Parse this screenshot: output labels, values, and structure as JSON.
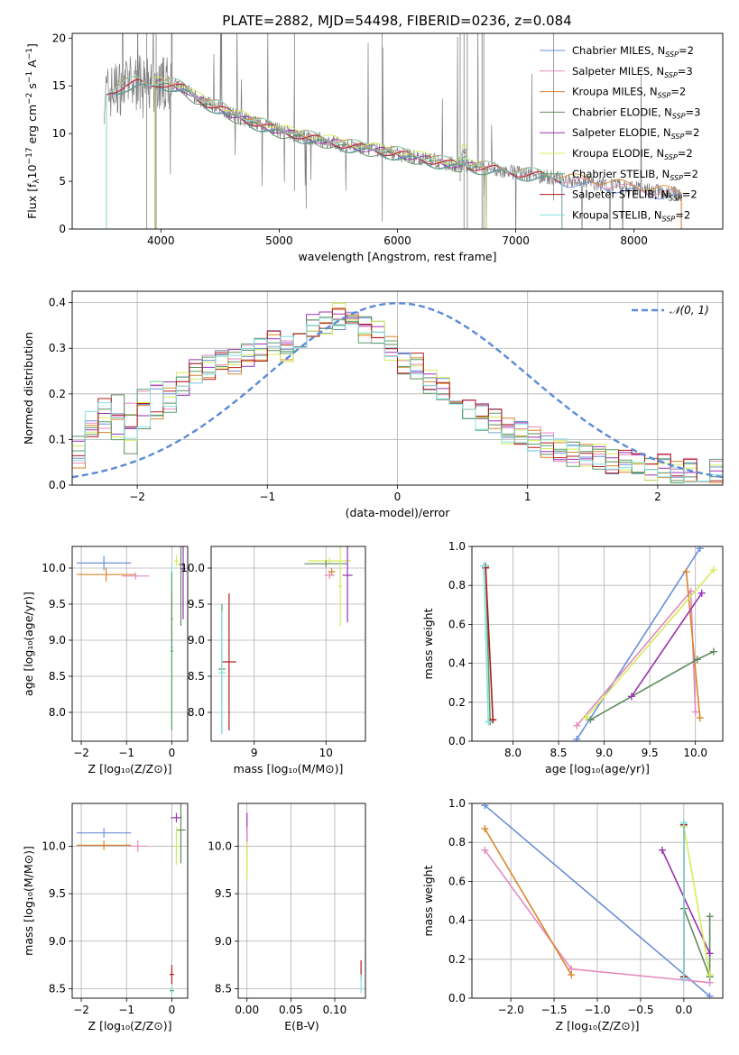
{
  "figure": {
    "title": "PLATE=2882, MJD=54498, FIBERID=0236, z=0.084"
  },
  "colors": {
    "Chabrier MILES": "#6a8fd8",
    "Salpeter MILES": "#e48ac0",
    "Kroupa MILES": "#d9862b",
    "Chabrier ELODIE": "#5f8a5f",
    "Salpeter ELODIE": "#9a32b0",
    "Kroupa ELODIE": "#d5ec5a",
    "Chabrier STELIB": "#5aa16a",
    "Salpeter STELIB": "#b01c1c",
    "Kroupa STELIB": "#86dfe3",
    "data": "#7f7f7f",
    "normal": "#5b8bd6"
  },
  "chart_data": [
    {
      "id": "spectrum",
      "type": "line",
      "xlabel_main": "wavelength [Angstrom, rest frame]",
      "ylabel": {
        "main": "Flux [f",
        "sub": "λ",
        "mid": "10",
        "sup1": "−17",
        "tail": " erg cm",
        "sup2": "−2",
        "tail2": " s",
        "sup3": "−1",
        "tail3": " A",
        "sup4": "−1",
        "end": "]"
      },
      "xlim": [
        3250,
        8750
      ],
      "ylim": [
        0,
        20.5
      ],
      "xticks": [
        4000,
        5000,
        6000,
        7000,
        8000
      ],
      "yticks": [
        0,
        5,
        10,
        15,
        20
      ],
      "grid": false,
      "legend_position": "top-right",
      "legend": [
        {
          "name": "Chabrier MILES",
          "n": "2"
        },
        {
          "name": "Salpeter MILES",
          "n": "3"
        },
        {
          "name": "Kroupa MILES",
          "n": "2"
        },
        {
          "name": "Chabrier ELODIE",
          "n": "3"
        },
        {
          "name": "Salpeter ELODIE",
          "n": "2"
        },
        {
          "name": "Kroupa ELODIE",
          "n": "2"
        },
        {
          "name": "Chabrier STELIB",
          "n": "2"
        },
        {
          "name": "Salpeter STELIB",
          "n": "2"
        },
        {
          "name": "Kroupa STELIB",
          "n": "2"
        }
      ],
      "continuum": {
        "x": [
          3520,
          3600,
          3700,
          3800,
          3900,
          4000,
          4100,
          4200,
          4300,
          4400,
          4500,
          4600,
          4800,
          5000,
          5200,
          5400,
          5600,
          5800,
          6000,
          6200,
          6400,
          6600,
          6800,
          7000,
          7200,
          7400,
          7600,
          7800,
          8000,
          8200,
          8400
        ],
        "y": [
          14.0,
          14.6,
          15.1,
          15.3,
          15.0,
          15.3,
          15.1,
          14.7,
          13.7,
          13.1,
          12.7,
          12.0,
          11.1,
          10.3,
          9.7,
          9.2,
          8.7,
          8.3,
          7.9,
          7.4,
          6.9,
          6.6,
          6.3,
          5.9,
          5.6,
          5.2,
          4.9,
          4.6,
          4.2,
          3.9,
          3.6
        ]
      }
    },
    {
      "id": "residuals",
      "type": "bar",
      "xlabel": "(data-model)/error",
      "ylabel": "Normed distribution",
      "xlim": [
        -2.5,
        2.5
      ],
      "ylim": [
        0,
        0.425
      ],
      "xticks": [
        -2,
        -1,
        0,
        1,
        2
      ],
      "yticks": [
        0.0,
        0.1,
        0.2,
        0.3,
        0.4
      ],
      "ytick_labels": [
        "0.0",
        "0.1",
        "0.2",
        "0.3",
        "0.4"
      ],
      "grid": true,
      "legend_position": "top-right",
      "normal_label": "𝒩(0, 1)",
      "bin_edges_start": -2.5,
      "bin_width": 0.1,
      "base_histogram": [
        0.09,
        0.15,
        0.13,
        0.12,
        0.11,
        0.15,
        0.17,
        0.19,
        0.22,
        0.25,
        0.26,
        0.28,
        0.27,
        0.29,
        0.3,
        0.31,
        0.3,
        0.32,
        0.35,
        0.36,
        0.37,
        0.36,
        0.34,
        0.33,
        0.3,
        0.27,
        0.26,
        0.23,
        0.21,
        0.19,
        0.17,
        0.15,
        0.14,
        0.12,
        0.11,
        0.1,
        0.09,
        0.08,
        0.07,
        0.07,
        0.06,
        0.05,
        0.05,
        0.04,
        0.04,
        0.04,
        0.03,
        0.03,
        0.03,
        0.03
      ],
      "series_order": [
        "Chabrier MILES",
        "Salpeter MILES",
        "Kroupa MILES",
        "Chabrier ELODIE",
        "Salpeter ELODIE",
        "Kroupa ELODIE",
        "Chabrier STELIB",
        "Salpeter STELIB",
        "Kroupa STELIB"
      ]
    },
    {
      "id": "Z-age",
      "type": "scatter",
      "xlabel": "Z [log₁₀(Z/Z⊙)]",
      "ylabel": "age  [log₁₀(age/yr)]",
      "xlim": [
        -2.2,
        0.35
      ],
      "ylim": [
        7.6,
        10.3
      ],
      "xticks": [
        -2,
        -1,
        0
      ],
      "yticks": [
        8.0,
        8.5,
        9.0,
        9.5,
        10.0
      ],
      "ytick_labels": [
        "8.0",
        "8.5",
        "9.0",
        "9.5",
        "10.0"
      ],
      "grid": true,
      "points": [
        {
          "s": "Chabrier MILES",
          "x": -1.5,
          "y": 10.07,
          "xerr": 0.6,
          "yerr": 0.1
        },
        {
          "s": "Kroupa MILES",
          "x": -1.45,
          "y": 9.91,
          "xerr": 0.65,
          "yerr": 0.1
        },
        {
          "s": "Salpeter MILES",
          "x": -0.8,
          "y": 9.89,
          "xerr": 0.3,
          "yerr": 0.05
        },
        {
          "s": "Salpeter ELODIE",
          "x": 0.25,
          "y": 9.99,
          "xerr": 0.05,
          "yerr": 0.7
        },
        {
          "s": "Kroupa ELODIE",
          "x": 0.1,
          "y": 10.1,
          "xerr": 0.05,
          "yerr": 0.08
        },
        {
          "s": "Chabrier ELODIE",
          "x": 0.2,
          "y": 10.05,
          "xerr": 0.05,
          "yerr": 0.85
        },
        {
          "s": "Salpeter STELIB",
          "x": 0.0,
          "y": 9.3,
          "xerr": 0.02,
          "yerr": 0.35
        },
        {
          "s": "Kroupa STELIB",
          "x": 0.0,
          "y": 8.9,
          "xerr": 0.03,
          "yerr": 1.15
        },
        {
          "s": "Chabrier STELIB",
          "x": 0.0,
          "y": 8.85,
          "xerr": 0.03,
          "yerr": 1.1
        }
      ]
    },
    {
      "id": "mass-age",
      "type": "scatter",
      "xlabel": "mass [log₁₀(M/M⊙)]",
      "ylabel": "",
      "xlim": [
        8.4,
        10.55
      ],
      "ylim": [
        7.6,
        10.3
      ],
      "xticks": [
        9,
        10
      ],
      "yticks": [
        8.0,
        8.5,
        9.0,
        9.5,
        10.0
      ],
      "ytick_labels": [
        "8.0",
        "8.5",
        "9.0",
        "9.5",
        "10.0"
      ],
      "grid": true,
      "points": [
        {
          "s": "Kroupa ELODIE",
          "x": 10.05,
          "y": 10.1,
          "xerr": 0.3,
          "yerr": 0.05
        },
        {
          "s": "Chabrier ELODIE",
          "x": 10.0,
          "y": 10.06,
          "xerr": 0.3,
          "yerr": 0.05
        },
        {
          "s": "Salpeter MILES",
          "x": 10.05,
          "y": 9.9,
          "xerr": 0.07,
          "yerr": 0.05
        },
        {
          "s": "Kroupa MILES",
          "x": 10.08,
          "y": 9.95,
          "xerr": 0.05,
          "yerr": 0.05
        },
        {
          "s": "Salpeter ELODIE",
          "x": 10.3,
          "y": 9.9,
          "xerr": 0.07,
          "yerr": 0.65
        },
        {
          "s": "Kroupa ELODIE",
          "x": 10.2,
          "y": 9.75,
          "xerr": 0.03,
          "yerr": 0.55
        },
        {
          "s": "Salpeter STELIB",
          "x": 8.65,
          "y": 8.7,
          "xerr": 0.1,
          "yerr": 0.95
        },
        {
          "s": "Chabrier STELIB",
          "x": 8.55,
          "y": 8.6,
          "xerr": 0.05,
          "yerr": 0.9
        },
        {
          "s": "Kroupa STELIB",
          "x": 8.55,
          "y": 8.55,
          "xerr": 0.05,
          "yerr": 0.85
        }
      ]
    },
    {
      "id": "age-weight",
      "type": "line",
      "xlabel": "age  [log₁₀(age/yr)]",
      "ylabel": "mass weight",
      "xlim": [
        7.55,
        10.3
      ],
      "ylim": [
        0.0,
        1.0
      ],
      "xticks": [
        8.0,
        8.5,
        9.0,
        9.5,
        10.0
      ],
      "xtick_labels": [
        "8.0",
        "8.5",
        "9.0",
        "9.5",
        "10.0"
      ],
      "yticks": [
        0.0,
        0.2,
        0.4,
        0.6,
        0.8,
        1.0
      ],
      "ytick_labels": [
        "0.0",
        "0.2",
        "0.4",
        "0.6",
        "0.8",
        "1.0"
      ],
      "grid": true,
      "lines": [
        {
          "s": "Chabrier MILES",
          "x": [
            8.7,
            10.05
          ],
          "y": [
            0.01,
            0.99
          ]
        },
        {
          "s": "Salpeter MILES",
          "x": [
            8.7,
            9.95,
            10.0
          ],
          "y": [
            0.08,
            0.77,
            0.15
          ]
        },
        {
          "s": "Kroupa MILES",
          "x": [
            9.9,
            10.05
          ],
          "y": [
            0.87,
            0.12
          ]
        },
        {
          "s": "Chabrier ELODIE",
          "x": [
            8.85,
            10.02,
            10.2
          ],
          "y": [
            0.11,
            0.42,
            0.46
          ]
        },
        {
          "s": "Salpeter ELODIE",
          "x": [
            9.3,
            10.07
          ],
          "y": [
            0.23,
            0.76
          ]
        },
        {
          "s": "Kroupa ELODIE",
          "x": [
            8.8,
            10.2
          ],
          "y": [
            0.12,
            0.88
          ]
        },
        {
          "s": "Chabrier STELIB",
          "x": [
            7.7,
            7.75
          ],
          "y": [
            0.9,
            0.1
          ]
        },
        {
          "s": "Salpeter STELIB",
          "x": [
            7.7,
            7.78
          ],
          "y": [
            0.89,
            0.11
          ]
        },
        {
          "s": "Kroupa STELIB",
          "x": [
            7.68,
            7.73
          ],
          "y": [
            0.9,
            0.1
          ]
        }
      ]
    },
    {
      "id": "Z-mass",
      "type": "scatter",
      "xlabel": "Z [log₁₀(Z/Z⊙)]",
      "ylabel": "mass [log₁₀(M/M⊙)]",
      "xlim": [
        -2.2,
        0.35
      ],
      "ylim": [
        8.4,
        10.45
      ],
      "xticks": [
        -2,
        -1,
        0
      ],
      "yticks": [
        8.5,
        9.0,
        9.5,
        10.0
      ],
      "ytick_labels": [
        "8.5",
        "9.0",
        "9.5",
        "10.0"
      ],
      "grid": true,
      "points": [
        {
          "s": "Chabrier MILES",
          "x": -1.5,
          "y": 10.14,
          "xerr": 0.6,
          "yerr": 0.05
        },
        {
          "s": "Kroupa MILES",
          "x": -1.5,
          "y": 10.01,
          "xerr": 0.6,
          "yerr": 0.05
        },
        {
          "s": "Salpeter MILES",
          "x": -0.75,
          "y": 10.0,
          "xerr": 0.2,
          "yerr": 0.06
        },
        {
          "s": "Salpeter ELODIE",
          "x": 0.1,
          "y": 10.3,
          "xerr": 0.12,
          "yerr": 0.05
        },
        {
          "s": "Chabrier ELODIE",
          "x": 0.2,
          "y": 10.17,
          "xerr": 0.1,
          "yerr": 0.35
        },
        {
          "s": "Kroupa ELODIE",
          "x": 0.1,
          "y": 10.0,
          "xerr": 0.05,
          "yerr": 0.2
        },
        {
          "s": "Salpeter STELIB",
          "x": 0.0,
          "y": 8.65,
          "xerr": 0.05,
          "yerr": 0.1
        },
        {
          "s": "Chabrier STELIB",
          "x": 0.0,
          "y": 8.48,
          "xerr": 0.05,
          "yerr": 0.03
        },
        {
          "s": "Kroupa STELIB",
          "x": 0.0,
          "y": 8.47,
          "xerr": 0.03,
          "yerr": 0.03
        }
      ]
    },
    {
      "id": "ebv-mass",
      "type": "scatter",
      "xlabel": "E(B-V)",
      "ylabel": "",
      "xlim": [
        -0.01,
        0.135
      ],
      "ylim": [
        8.4,
        10.45
      ],
      "xticks": [
        0.0,
        0.05,
        0.1
      ],
      "xtick_labels": [
        "0.00",
        "0.05",
        "0.10"
      ],
      "yticks": [
        8.5,
        9.0,
        9.5,
        10.0
      ],
      "ytick_labels": [
        "8.5",
        "9.0",
        "9.5",
        "10.0"
      ],
      "grid": true,
      "points": [
        {
          "s": "Salpeter ELODIE",
          "x": 0.0,
          "y": 10.2,
          "xerr": 0.0,
          "yerr": 0.15
        },
        {
          "s": "Salpeter MILES",
          "x": 0.0,
          "y": 10.05,
          "xerr": 0.0,
          "yerr": 0.15
        },
        {
          "s": "Kroupa ELODIE",
          "x": 0.0,
          "y": 9.85,
          "xerr": 0.0,
          "yerr": 0.2
        },
        {
          "s": "Salpeter STELIB",
          "x": 0.13,
          "y": 8.7,
          "xerr": 0.0,
          "yerr": 0.1
        },
        {
          "s": "Kroupa STELIB",
          "x": 0.13,
          "y": 8.55,
          "xerr": 0.0,
          "yerr": 0.1
        }
      ]
    },
    {
      "id": "Z-weight",
      "type": "line",
      "xlabel": "Z [log₁₀(Z/Z⊙)]",
      "ylabel": "mass weight",
      "xlim": [
        -2.45,
        0.45
      ],
      "ylim": [
        0.0,
        1.0
      ],
      "xticks": [
        -2.0,
        -1.5,
        -1.0,
        -0.5,
        0.0
      ],
      "xtick_labels": [
        "−2.0",
        "−1.5",
        "−1.0",
        "−0.5",
        "0.0"
      ],
      "yticks": [
        0.0,
        0.2,
        0.4,
        0.6,
        0.8,
        1.0
      ],
      "ytick_labels": [
        "0.0",
        "0.2",
        "0.4",
        "0.6",
        "0.8",
        "1.0"
      ],
      "grid": true,
      "lines": [
        {
          "s": "Chabrier MILES",
          "x": [
            -2.3,
            0.3
          ],
          "y": [
            0.99,
            0.01
          ]
        },
        {
          "s": "Salpeter MILES",
          "x": [
            -2.3,
            -1.3,
            0.3
          ],
          "y": [
            0.76,
            0.15,
            0.08
          ]
        },
        {
          "s": "Kroupa MILES",
          "x": [
            -2.3,
            -1.3
          ],
          "y": [
            0.87,
            0.12
          ]
        },
        {
          "s": "Chabrier ELODIE",
          "x": [
            0.0,
            0.3,
            0.3
          ],
          "y": [
            0.46,
            0.11,
            0.42
          ]
        },
        {
          "s": "Salpeter ELODIE",
          "x": [
            -0.25,
            0.3
          ],
          "y": [
            0.76,
            0.23
          ]
        },
        {
          "s": "Kroupa ELODIE",
          "x": [
            0.0,
            0.3
          ],
          "y": [
            0.88,
            0.12
          ]
        },
        {
          "s": "Chabrier STELIB",
          "x": [
            0.0,
            0.0
          ],
          "y": [
            0.9,
            0.1
          ]
        },
        {
          "s": "Salpeter STELIB",
          "x": [
            0.0,
            0.0
          ],
          "y": [
            0.89,
            0.11
          ]
        },
        {
          "s": "Kroupa STELIB",
          "x": [
            0.0,
            0.0
          ],
          "y": [
            0.9,
            0.1
          ]
        }
      ]
    }
  ]
}
